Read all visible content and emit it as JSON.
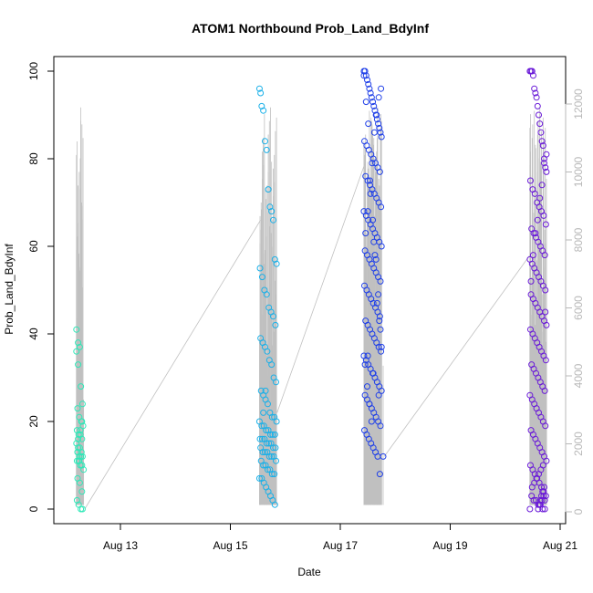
{
  "chart_data": {
    "type": "scatter",
    "title": "ATOM1 Northbound Prob_Land_BdyInf",
    "xlabel": "Date",
    "ylabel": "Prob_Land_BdyInf",
    "x_ticks": [
      "Aug 13",
      "Aug 15",
      "Aug 17",
      "Aug 19",
      "Aug 21"
    ],
    "x_tick_values": [
      13,
      15,
      17,
      19,
      21
    ],
    "xlim": [
      12.0,
      21.3
    ],
    "ylim": [
      0,
      100
    ],
    "y_ticks": [
      0,
      20,
      40,
      60,
      80,
      100
    ],
    "y2lim": [
      0,
      12500
    ],
    "y2_ticks": [
      0,
      2000,
      4000,
      6000,
      8000,
      10000,
      12000
    ],
    "grid": false,
    "legend": "none",
    "colors": {
      "series_palette": [
        "#2ee8b8",
        "#1ab0e8",
        "#2040e8",
        "#6a1ad8"
      ],
      "secondary_line": "#c0c0c0",
      "right_axis": "#b8b8b8"
    },
    "series": [
      {
        "x": [
          12.2,
          12.23,
          12.26,
          12.2,
          12.23,
          12.28,
          12.31,
          12.22,
          12.25,
          12.29,
          12.32,
          12.21,
          12.24,
          12.27,
          12.3,
          12.2,
          12.23,
          12.26,
          12.29,
          12.22,
          12.25,
          12.28,
          12.31,
          12.21,
          12.24,
          12.27,
          12.3,
          12.33,
          12.22,
          12.26,
          12.3,
          12.21,
          12.24,
          12.28,
          12.31,
          12.23,
          12.27,
          12.3,
          12.22,
          12.25
        ],
        "values": [
          41,
          38,
          37,
          36,
          33,
          28,
          24,
          23,
          21,
          20,
          19,
          18,
          17,
          17,
          16,
          15,
          14,
          14,
          13,
          13,
          12,
          12,
          12,
          11,
          11,
          10,
          10,
          9,
          7,
          6,
          4,
          2,
          1,
          0,
          0,
          16,
          18,
          20,
          13,
          11
        ]
      },
      {
        "x": [
          15.53,
          15.55,
          15.57,
          15.6,
          15.63,
          15.66,
          15.69,
          15.72,
          15.75,
          15.78,
          15.81,
          15.84,
          15.54,
          15.58,
          15.62,
          15.66,
          15.7,
          15.74,
          15.78,
          15.82,
          15.55,
          15.59,
          15.63,
          15.67,
          15.71,
          15.75,
          15.79,
          15.83,
          15.56,
          15.6,
          15.64,
          15.68,
          15.72,
          15.76,
          15.8,
          15.84,
          15.53,
          15.57,
          15.61,
          15.65,
          15.69,
          15.73,
          15.77,
          15.81,
          15.54,
          15.58,
          15.62,
          15.66,
          15.7,
          15.74,
          15.78,
          15.82,
          15.55,
          15.59,
          15.63,
          15.67,
          15.71,
          15.75,
          15.79,
          15.83,
          15.56,
          15.6,
          15.64,
          15.68,
          15.72,
          15.76,
          15.8,
          15.53,
          15.57,
          15.61,
          15.65,
          15.69,
          15.73,
          15.77,
          15.81,
          15.6,
          15.64
        ],
        "values": [
          96,
          95,
          92,
          91,
          84,
          82,
          73,
          69,
          68,
          66,
          57,
          56,
          55,
          53,
          50,
          49,
          46,
          45,
          44,
          42,
          39,
          38,
          37,
          36,
          34,
          33,
          30,
          29,
          27,
          26,
          25,
          24,
          22,
          21,
          21,
          20,
          20,
          19,
          19,
          18,
          18,
          17,
          17,
          17,
          16,
          16,
          16,
          15,
          15,
          15,
          14,
          14,
          14,
          13,
          13,
          13,
          12,
          12,
          12,
          11,
          11,
          10,
          10,
          9,
          9,
          8,
          8,
          7,
          7,
          6,
          5,
          4,
          3,
          2,
          1,
          22,
          27
        ]
      },
      {
        "x": [
          17.43,
          17.45,
          17.47,
          17.49,
          17.51,
          17.53,
          17.55,
          17.57,
          17.59,
          17.61,
          17.63,
          17.65,
          17.67,
          17.69,
          17.71,
          17.73,
          17.75,
          17.44,
          17.48,
          17.52,
          17.56,
          17.6,
          17.64,
          17.68,
          17.72,
          17.46,
          17.5,
          17.54,
          17.58,
          17.62,
          17.66,
          17.7,
          17.74,
          17.43,
          17.47,
          17.51,
          17.55,
          17.59,
          17.63,
          17.67,
          17.71,
          17.75,
          17.45,
          17.49,
          17.53,
          17.57,
          17.61,
          17.65,
          17.69,
          17.73,
          17.44,
          17.48,
          17.52,
          17.56,
          17.6,
          17.64,
          17.68,
          17.72,
          17.46,
          17.5,
          17.54,
          17.58,
          17.62,
          17.66,
          17.7,
          17.74,
          17.43,
          17.47,
          17.51,
          17.55,
          17.59,
          17.63,
          17.67,
          17.71,
          17.75,
          17.45,
          17.49,
          17.53,
          17.57,
          17.61,
          17.65,
          17.69,
          17.73,
          17.44,
          17.48,
          17.52,
          17.56,
          17.6,
          17.64,
          17.68,
          17.72,
          17.46,
          17.5,
          17.54,
          17.58,
          17.62,
          17.66,
          17.7,
          17.74,
          17.43,
          17.47,
          17.51,
          17.55,
          17.59,
          17.63,
          17.67,
          17.71,
          17.75,
          17.45,
          17.49,
          17.53,
          17.57,
          17.61,
          17.65,
          17.69,
          17.73,
          17.5,
          17.6,
          17.7,
          17.78
        ],
        "values": [
          100,
          100,
          99,
          98,
          97,
          96,
          95,
          94,
          93,
          92,
          91,
          90,
          89,
          88,
          87,
          86,
          85,
          84,
          83,
          82,
          81,
          80,
          79,
          78,
          77,
          76,
          75,
          74,
          73,
          72,
          71,
          70,
          69,
          68,
          67,
          66,
          65,
          64,
          63,
          62,
          61,
          60,
          59,
          58,
          57,
          56,
          55,
          54,
          53,
          52,
          51,
          50,
          49,
          48,
          47,
          46,
          45,
          44,
          43,
          42,
          41,
          40,
          39,
          38,
          37,
          36,
          35,
          34,
          33,
          32,
          31,
          30,
          29,
          28,
          27,
          26,
          25,
          24,
          23,
          22,
          21,
          20,
          19,
          18,
          17,
          16,
          15,
          14,
          13,
          12,
          8,
          63,
          68,
          75,
          79,
          86,
          90,
          94,
          96,
          99,
          93,
          88,
          72,
          66,
          58,
          47,
          43,
          37,
          33,
          28,
          24,
          20,
          61,
          57,
          49,
          41,
          35,
          31,
          26,
          12
        ]
      },
      {
        "x": [
          20.45,
          20.47,
          20.49,
          20.51,
          20.53,
          20.55,
          20.57,
          20.59,
          20.61,
          20.63,
          20.65,
          20.67,
          20.69,
          20.71,
          20.73,
          20.75,
          20.46,
          20.5,
          20.54,
          20.58,
          20.62,
          20.66,
          20.7,
          20.74,
          20.48,
          20.52,
          20.56,
          20.6,
          20.64,
          20.68,
          20.72,
          20.45,
          20.49,
          20.53,
          20.57,
          20.61,
          20.65,
          20.69,
          20.73,
          20.47,
          20.51,
          20.55,
          20.59,
          20.63,
          20.67,
          20.71,
          20.75,
          20.46,
          20.5,
          20.54,
          20.58,
          20.62,
          20.66,
          20.7,
          20.74,
          20.48,
          20.52,
          20.56,
          20.6,
          20.64,
          20.68,
          20.72,
          20.45,
          20.49,
          20.53,
          20.57,
          20.61,
          20.65,
          20.69,
          20.73,
          20.47,
          20.51,
          20.55,
          20.59,
          20.63,
          20.67,
          20.71,
          20.75,
          20.46,
          20.5,
          20.54,
          20.58,
          20.62,
          20.66,
          20.7,
          20.74,
          20.48,
          20.52,
          20.56,
          20.6,
          20.64,
          20.68,
          20.72,
          20.45,
          20.49,
          20.53,
          20.57,
          20.61,
          20.65,
          20.69,
          20.73,
          20.47,
          20.51,
          20.55,
          20.59,
          20.63,
          20.67,
          20.71,
          20.75,
          20.62,
          20.64,
          20.66,
          20.68,
          20.7,
          20.72,
          20.6,
          20.63,
          20.67,
          20.71
        ],
        "values": [
          100,
          100,
          100,
          99,
          96,
          95,
          94,
          92,
          90,
          88,
          86,
          84,
          83,
          80,
          78,
          77,
          75,
          73,
          72,
          70,
          69,
          68,
          67,
          65,
          64,
          63,
          62,
          61,
          60,
          59,
          58,
          57,
          56,
          55,
          54,
          53,
          52,
          51,
          50,
          49,
          48,
          47,
          46,
          45,
          44,
          43,
          42,
          41,
          40,
          39,
          38,
          37,
          36,
          35,
          34,
          33,
          32,
          31,
          30,
          29,
          28,
          27,
          26,
          25,
          24,
          23,
          22,
          21,
          20,
          19,
          18,
          17,
          16,
          15,
          14,
          13,
          12,
          11,
          10,
          9,
          8,
          7,
          6,
          5,
          4,
          3,
          3,
          2,
          2,
          1,
          1,
          0,
          0,
          0,
          5,
          6,
          7,
          8,
          9,
          10,
          45,
          52,
          58,
          63,
          66,
          71,
          74,
          79,
          81,
          1,
          2,
          3,
          4,
          3,
          2,
          0,
          1,
          2,
          5
        ]
      }
    ]
  }
}
